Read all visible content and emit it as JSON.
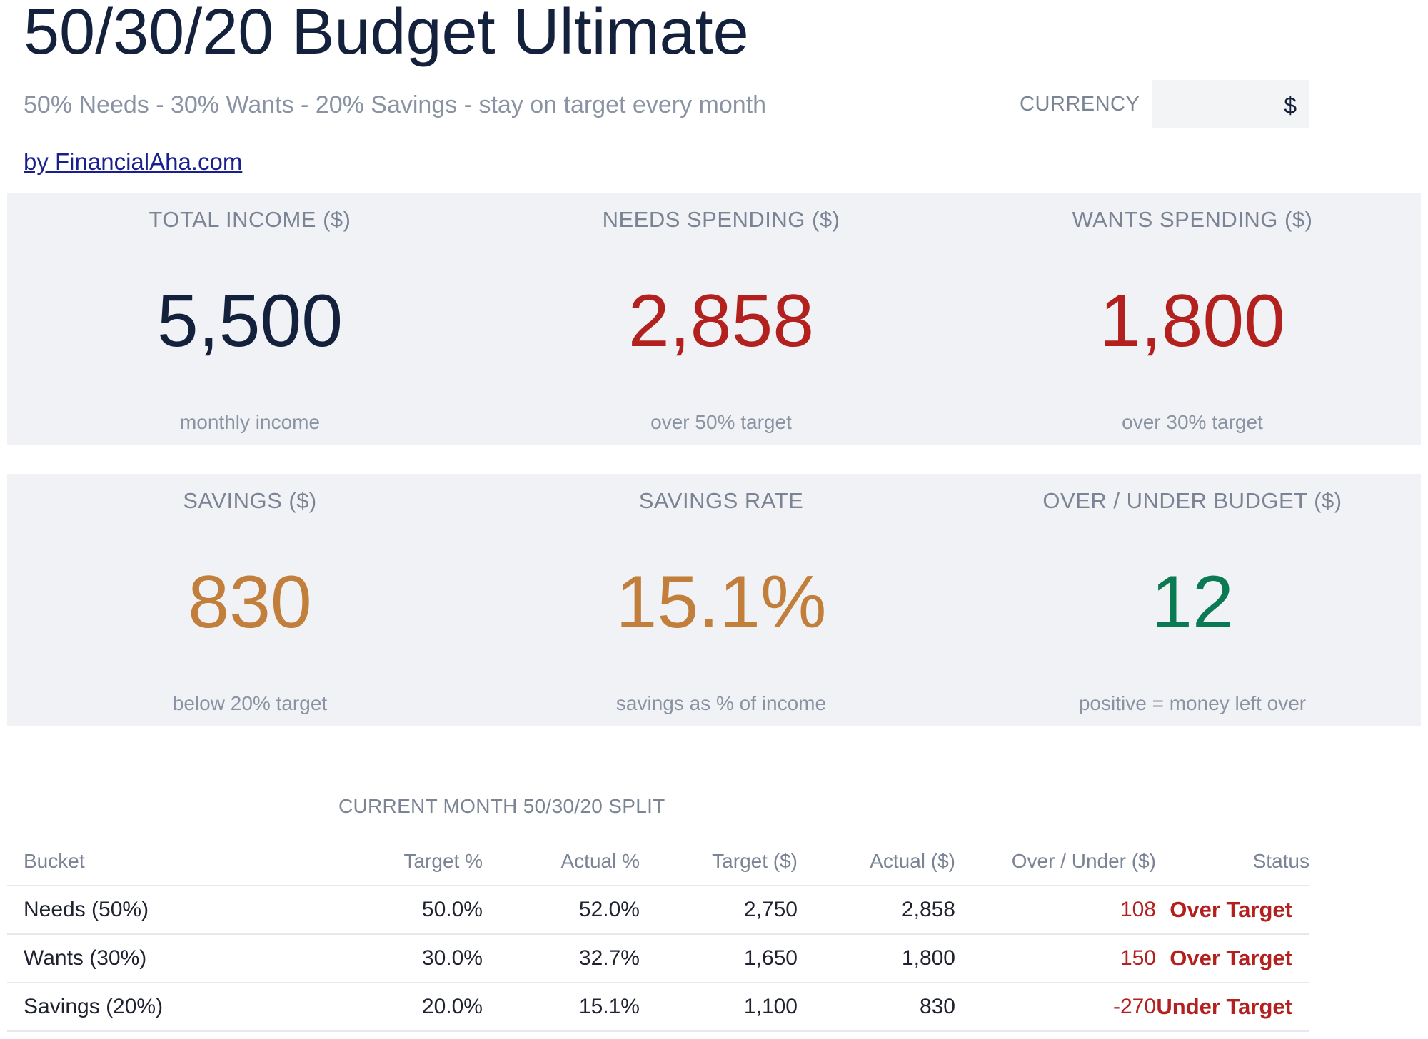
{
  "header": {
    "title": "50/30/20 Budget Ultimate",
    "subtitle": "50% Needs - 30% Wants - 20% Savings - stay on target every month",
    "byline": "by FinancialAha.com",
    "currency_label": "CURRENCY",
    "currency_value": "$"
  },
  "colors": {
    "navy": "#14213d",
    "red": "#b3211f",
    "amber": "#c17f3b",
    "green": "#0a7a52",
    "panel_bg": "#f1f2f5"
  },
  "kpis_top": [
    {
      "label": "TOTAL INCOME ($)",
      "value": "5,500",
      "sub": "monthly income",
      "color": "#14213d"
    },
    {
      "label": "NEEDS SPENDING ($)",
      "value": "2,858",
      "sub": "over 50% target",
      "color": "#b3211f"
    },
    {
      "label": "WANTS SPENDING ($)",
      "value": "1,800",
      "sub": "over 30% target",
      "color": "#b3211f"
    }
  ],
  "kpis_bottom": [
    {
      "label": "SAVINGS ($)",
      "value": "830",
      "sub": "below 20% target",
      "color": "#c17f3b"
    },
    {
      "label": "SAVINGS RATE",
      "value": "15.1%",
      "sub": "savings as % of income",
      "color": "#c17f3b"
    },
    {
      "label": "OVER / UNDER BUDGET ($)",
      "value": "12",
      "sub": "positive = money left over",
      "color": "#0a7a52"
    }
  ],
  "split": {
    "title": "CURRENT MONTH 50/30/20 SPLIT",
    "columns": [
      "Bucket",
      "Target %",
      "Actual %",
      "Target ($)",
      "Actual ($)",
      "Over / Under ($)",
      "Status"
    ],
    "rows": [
      {
        "bucket": "Needs (50%)",
        "target_pct": "50.0%",
        "actual_pct": "52.0%",
        "target_amt": "2,750",
        "actual_amt": "2,858",
        "over_under": "108",
        "status": "Over Target"
      },
      {
        "bucket": "Wants (30%)",
        "target_pct": "30.0%",
        "actual_pct": "32.7%",
        "target_amt": "1,650",
        "actual_amt": "1,800",
        "over_under": "150",
        "status": "Over Target"
      },
      {
        "bucket": "Savings (20%)",
        "target_pct": "20.0%",
        "actual_pct": "15.1%",
        "target_amt": "1,100",
        "actual_amt": "830",
        "over_under": "-270",
        "status": "Under Target"
      }
    ]
  }
}
